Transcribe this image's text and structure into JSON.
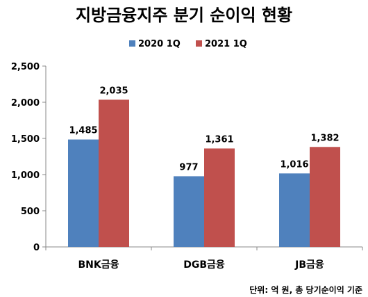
{
  "chart_data": {
    "type": "bar",
    "title": "지방금융지주 분기 순이익 현황",
    "categories": [
      "BNK금융",
      "DGB금융",
      "JB금융"
    ],
    "series": [
      {
        "name": "2020 1Q",
        "color": "#4F81BD",
        "values": [
          1485,
          977,
          1016
        ],
        "labels": [
          "1,485",
          "977",
          "1,016"
        ]
      },
      {
        "name": "2021 1Q",
        "color": "#C0504D",
        "values": [
          2035,
          1361,
          1382
        ],
        "labels": [
          "2,035",
          "1,361",
          "1,382"
        ]
      }
    ],
    "ylim": [
      0,
      2500
    ],
    "yticks": [
      0,
      500,
      1000,
      1500,
      2000,
      2500
    ],
    "ytick_labels": [
      "0",
      "500",
      "1,000",
      "1,500",
      "2,000",
      "2,500"
    ],
    "legend_position": "top-center",
    "grid": false,
    "unit_note": "단위: 억 원, 총 당기순이익 기준"
  }
}
